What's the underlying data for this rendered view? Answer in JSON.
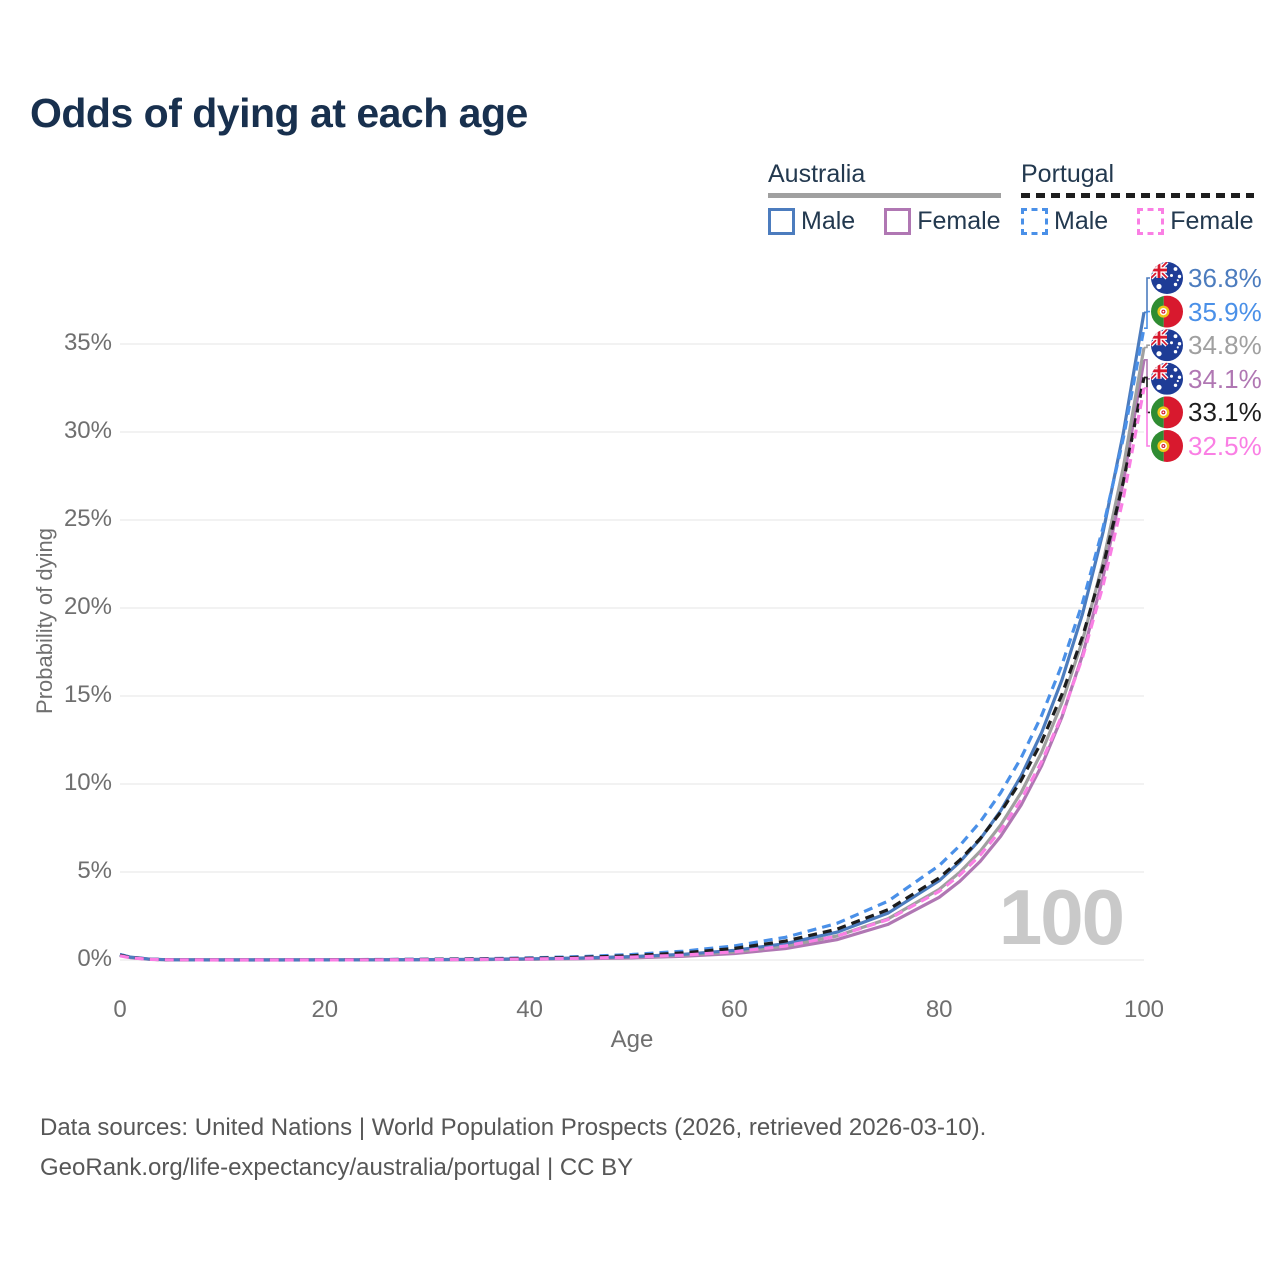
{
  "title": "Odds of dying at each age",
  "watermark": "100",
  "legend": {
    "australia": {
      "label": "Australia",
      "male": "Male",
      "female": "Female"
    },
    "portugal": {
      "label": "Portugal",
      "male": "Male",
      "female": "Female"
    }
  },
  "footer": {
    "line1": "Data sources: United Nations | World Population Prospects (2026, retrieved 2026-03-10).",
    "line2": "GeoRank.org/life-expectancy/australia/portugal | CC BY"
  },
  "colors": {
    "title_text": "#18304e",
    "legend_text": "#23394f",
    "axis_text": "#6f6f6f",
    "gridline": "#eaeaea",
    "watermark": "#c9c9c9",
    "footer_text": "#575757",
    "australia_male": "#4c7cbe",
    "australia_female": "#b077b3",
    "australia_all": "#a0a0a0",
    "portugal_male": "#4a90e8",
    "portugal_female": "#fa7fe4",
    "portugal_all": "#1d1d1d"
  },
  "chart_data": {
    "type": "line",
    "title": "Odds of dying at each age",
    "xlabel": "Age",
    "ylabel": "Probability of dying",
    "xlim": [
      0,
      100
    ],
    "ylim": [
      0,
      38.5
    ],
    "grid": "horizontal",
    "x_ticks": [
      "0",
      "20",
      "40",
      "60",
      "80",
      "100"
    ],
    "x_tick_values": [
      0,
      20,
      40,
      60,
      80,
      100
    ],
    "y_ticks": [
      "0%",
      "5%",
      "10%",
      "15%",
      "20%",
      "25%",
      "30%",
      "35%"
    ],
    "y_tick_values": [
      0,
      5,
      10,
      15,
      20,
      25,
      30,
      35
    ],
    "x": [
      0,
      1,
      3,
      5,
      10,
      15,
      20,
      25,
      30,
      35,
      40,
      45,
      50,
      55,
      60,
      65,
      70,
      75,
      80,
      82,
      84,
      86,
      88,
      90,
      92,
      94,
      96,
      98,
      100
    ],
    "series": [
      {
        "name": "Australia Female",
        "country": "australia",
        "sex": "female",
        "color": "#b077b3",
        "dash": false,
        "end_label": "34.1%",
        "values": [
          0.26,
          0.134,
          0.036,
          0.01,
          0.002,
          0.002,
          0.004,
          0.007,
          0.013,
          0.022,
          0.039,
          0.068,
          0.12,
          0.211,
          0.372,
          0.654,
          1.151,
          2.025,
          3.563,
          4.467,
          5.6,
          7.02,
          8.801,
          11.033,
          13.832,
          17.34,
          21.738,
          27.252,
          34.1
        ]
      },
      {
        "name": "Australia",
        "country": "australia",
        "sex": "all",
        "color": "#a0a0a0",
        "dash": false,
        "end_label": "34.8%",
        "values": [
          0.301,
          0.155,
          0.042,
          0.012,
          0.003,
          0.004,
          0.006,
          0.011,
          0.018,
          0.031,
          0.053,
          0.092,
          0.157,
          0.27,
          0.463,
          0.794,
          1.363,
          2.339,
          4.013,
          4.979,
          6.178,
          7.666,
          9.511,
          11.801,
          14.642,
          18.167,
          22.592,
          28.039,
          34.8
        ]
      },
      {
        "name": "Australia Male",
        "country": "australia",
        "sex": "male",
        "color": "#4c7cbe",
        "dash": false,
        "end_label": "36.8%",
        "values": [
          0.321,
          0.165,
          0.045,
          0.013,
          0.003,
          0.005,
          0.008,
          0.014,
          0.024,
          0.04,
          0.068,
          0.114,
          0.193,
          0.326,
          0.552,
          0.933,
          1.577,
          2.665,
          4.506,
          5.562,
          6.866,
          8.476,
          10.462,
          12.914,
          15.942,
          19.68,
          24.293,
          29.988,
          36.8
        ]
      },
      {
        "name": "Portugal Male",
        "country": "portugal",
        "sex": "male",
        "color": "#4a90e8",
        "dash": true,
        "end_label": "35.9%",
        "values": [
          0.303,
          0.157,
          0.044,
          0.015,
          0.007,
          0.011,
          0.018,
          0.029,
          0.046,
          0.075,
          0.12,
          0.193,
          0.311,
          0.499,
          0.803,
          1.291,
          2.077,
          3.339,
          5.369,
          6.493,
          7.852,
          9.496,
          11.483,
          13.887,
          16.793,
          20.308,
          24.559,
          29.699,
          35.9
        ]
      },
      {
        "name": "Portugal",
        "country": "portugal",
        "sex": "all",
        "color": "#1d1d1d",
        "dash": true,
        "end_label": "33.1%",
        "values": [
          0.272,
          0.141,
          0.039,
          0.013,
          0.005,
          0.008,
          0.013,
          0.021,
          0.035,
          0.057,
          0.093,
          0.151,
          0.246,
          0.402,
          0.657,
          1.072,
          1.75,
          2.856,
          4.662,
          5.671,
          6.899,
          8.39,
          10.203,
          12.405,
          15.112,
          18.385,
          22.357,
          27.206,
          33.1
        ]
      },
      {
        "name": "Portugal Female",
        "country": "portugal",
        "sex": "female",
        "color": "#fa7fe4",
        "dash": true,
        "end_label": "32.5%",
        "values": [
          0.241,
          0.124,
          0.034,
          0.01,
          0.003,
          0.004,
          0.007,
          0.011,
          0.019,
          0.033,
          0.056,
          0.095,
          0.162,
          0.276,
          0.468,
          0.796,
          1.352,
          2.296,
          3.901,
          4.822,
          5.961,
          7.367,
          9.109,
          11.26,
          13.919,
          17.204,
          21.267,
          26.29,
          32.5
        ]
      }
    ],
    "legend_position": "top-right",
    "end_label_flags": {
      "australia": "australia-flag",
      "portugal": "portugal-flag"
    }
  }
}
